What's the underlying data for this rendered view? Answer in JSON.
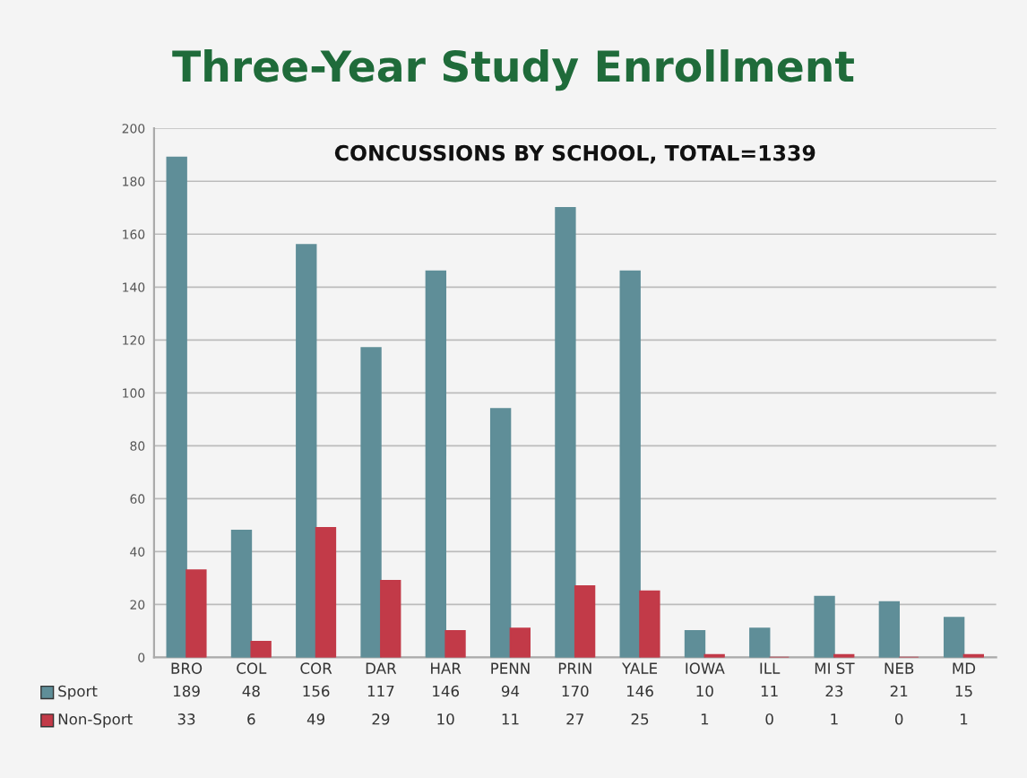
{
  "chart_data": {
    "type": "bar",
    "title": "Three-Year Study Enrollment",
    "subtitle": "CONCUSSIONS BY SCHOOL, TOTAL=1339",
    "categories": [
      "BRO",
      "COL",
      "COR",
      "DAR",
      "HAR",
      "PENN",
      "PRIN",
      "YALE",
      "IOWA",
      "ILL",
      "MI ST",
      "NEB",
      "MD"
    ],
    "series": [
      {
        "name": "Sport",
        "color": "#5f8e98",
        "values": [
          189,
          48,
          156,
          117,
          146,
          94,
          170,
          146,
          10,
          11,
          23,
          21,
          15
        ]
      },
      {
        "name": "Non-Sport",
        "color": "#c23a48",
        "values": [
          33,
          6,
          49,
          29,
          10,
          11,
          27,
          25,
          1,
          0,
          1,
          0,
          1
        ]
      }
    ],
    "ylim": [
      0,
      200
    ],
    "yticks": [
      0,
      20,
      40,
      60,
      80,
      100,
      120,
      140,
      160,
      180,
      200
    ],
    "grid": "y",
    "legend": "bottom left",
    "data_labels": true
  }
}
